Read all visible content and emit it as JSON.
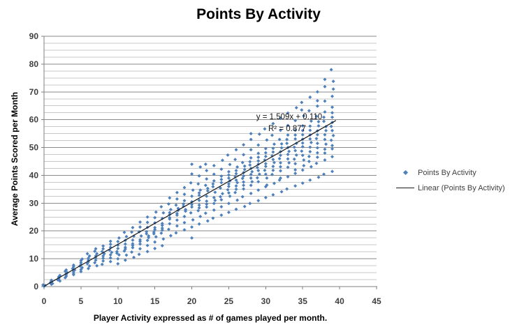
{
  "chart": {
    "title": "Points By Activity",
    "annotation": {
      "equation": "y = 1.509x + 0.110",
      "r_squared": "R² = 0.877"
    },
    "legend": {
      "items": [
        {
          "label": "Points By Activity",
          "marker": "diamond"
        },
        {
          "label": "Linear (Points By Activity)",
          "marker": "line"
        }
      ]
    }
  },
  "chart_data": {
    "type": "scatter",
    "title": "Points By Activity",
    "xlabel": "Player Activity expressed as # of games played per month.",
    "ylabel": "Average Points Scored per Month",
    "xlim": [
      0,
      45
    ],
    "ylim": [
      0,
      90
    ],
    "x_ticks": [
      0,
      5,
      10,
      15,
      20,
      25,
      30,
      35,
      40,
      45
    ],
    "y_ticks": [
      0,
      10,
      20,
      30,
      40,
      50,
      60,
      70,
      80,
      90
    ],
    "y_minor_step": 2.5,
    "grid": "horizontal-major-and-minor",
    "legend_position": "right",
    "colors": {
      "marker": "#4E80BC",
      "trendline": "#1A1A1A",
      "grid_major": "#8A8A8A",
      "grid_minor": "#C9C9C9",
      "axis": "#808080",
      "tick_text": "#3F3F3F"
    },
    "trendline": {
      "label": "Linear (Points By Activity)",
      "slope": 1.509,
      "intercept": 0.11,
      "r2": 0.877,
      "x_start": 0,
      "x_end": 39.5,
      "equation_text": "y = 1.509x + 0.110",
      "r2_text": "R² = 0.877"
    },
    "series": [
      {
        "name": "Points By Activity",
        "columns": [
          {
            "x": 0,
            "ys": [
              0.1,
              0.2,
              0.4,
              0.6
            ]
          },
          {
            "x": 1,
            "ys": [
              0.8,
              1.1,
              1.4,
              1.6,
              1.9,
              2.3
            ]
          },
          {
            "x": 2,
            "ys": [
              2.0,
              2.4,
              2.8,
              3.1,
              3.5,
              4.0
            ]
          },
          {
            "x": 3,
            "ys": [
              3.2,
              3.7,
              4.2,
              4.6,
              5.0,
              5.5,
              6.0
            ]
          },
          {
            "x": 4,
            "ys": [
              4.3,
              4.9,
              5.5,
              6.0,
              6.5,
              7.1,
              7.7
            ]
          },
          {
            "x": 5,
            "ys": [
              5.4,
              6.1,
              6.8,
              7.4,
              7.9,
              8.6,
              9.3,
              9.9
            ]
          },
          {
            "x": 6,
            "ys": [
              6.5,
              7.4,
              8.2,
              8.9,
              9.5,
              10.2,
              11.0,
              11.8
            ]
          },
          {
            "x": 7,
            "ys": [
              7.5,
              8.6,
              9.5,
              10.3,
              11.0,
              11.8,
              12.7,
              13.6
            ]
          },
          {
            "x": 8,
            "ys": [
              8.0,
              9.2,
              10.2,
              11.0,
              11.8,
              12.6,
              13.6,
              14.6
            ]
          },
          {
            "x": 9,
            "ys": [
              9.0,
              10.3,
              11.4,
              12.3,
              13.1,
              14.1,
              15.2,
              16.3
            ]
          },
          {
            "x": 10,
            "ys": [
              8.2,
              10.0,
              11.4,
              12.6,
              13.7,
              14.9,
              16.2,
              17.5,
              12.0
            ]
          },
          {
            "x": 11,
            "ys": [
              9.5,
              11.3,
              12.8,
              14.1,
              15.3,
              16.6,
              18.0,
              19.5,
              13.5
            ]
          },
          {
            "x": 12,
            "ys": [
              10.5,
              12.4,
              14.0,
              15.4,
              16.7,
              18.1,
              19.6,
              21.2,
              14.8
            ]
          },
          {
            "x": 13,
            "ys": [
              11.6,
              13.6,
              15.3,
              16.8,
              18.2,
              19.7,
              21.4,
              23.2,
              16.2
            ]
          },
          {
            "x": 14,
            "ys": [
              12.6,
              14.8,
              16.6,
              18.2,
              19.7,
              21.3,
              23.1,
              25.0,
              17.6,
              19.0
            ]
          },
          {
            "x": 15,
            "ys": [
              13.7,
              16.0,
              17.9,
              19.6,
              21.2,
              22.9,
              24.8,
              26.8,
              19.0,
              20.5
            ]
          },
          {
            "x": 16,
            "ys": [
              14.7,
              17.1,
              19.2,
              21.0,
              22.7,
              24.5,
              26.5,
              28.7,
              20.3,
              22.0
            ]
          },
          {
            "x": 17,
            "ys": [
              18.3,
              20.6,
              22.6,
              24.3,
              25.9,
              27.7,
              29.7,
              31.9,
              24.8,
              26.6
            ]
          },
          {
            "x": 18,
            "ys": [
              19.3,
              21.8,
              23.9,
              25.7,
              27.4,
              29.3,
              31.5,
              33.8,
              26.3,
              28.1
            ]
          },
          {
            "x": 19,
            "ys": [
              20.4,
              23.0,
              25.2,
              27.1,
              28.9,
              30.9,
              33.2,
              35.6,
              27.7,
              29.7
            ]
          },
          {
            "x": 20,
            "ys": [
              17.5,
              21.4,
              24.0,
              26.5,
              28.6,
              30.5,
              32.5,
              34.7,
              37.3,
              40.5,
              44.0,
              29.5
            ]
          },
          {
            "x": 21,
            "ys": [
              22.5,
              25.2,
              27.3,
              29.3,
              31.0,
              32.8,
              34.7,
              36.9,
              39.8,
              28.3,
              33.7,
              43.0
            ]
          },
          {
            "x": 22,
            "ys": [
              23.6,
              26.4,
              28.6,
              30.7,
              32.5,
              34.4,
              36.4,
              38.7,
              41.7,
              29.6,
              35.3,
              44.0
            ]
          },
          {
            "x": 23,
            "ys": [
              24.6,
              27.5,
              29.9,
              32.0,
              33.9,
              35.9,
              38.0,
              40.4,
              43.5,
              31.0,
              36.9
            ]
          },
          {
            "x": 24,
            "ys": [
              25.7,
              28.7,
              31.2,
              33.4,
              35.4,
              37.4,
              39.7,
              42.2,
              45.4,
              32.3,
              38.5
            ]
          },
          {
            "x": 25,
            "ys": [
              26.7,
              29.9,
              32.5,
              34.8,
              36.9,
              39.0,
              41.3,
              43.9,
              47.3,
              33.7,
              40.1,
              36.0,
              38.0
            ]
          },
          {
            "x": 26,
            "ys": [
              27.8,
              31.1,
              33.8,
              36.2,
              38.3,
              40.6,
              43.0,
              45.7,
              49.2,
              35.0,
              41.7,
              37.4,
              39.5
            ]
          },
          {
            "x": 27,
            "ys": [
              28.8,
              32.3,
              35.1,
              37.6,
              39.8,
              42.1,
              44.6,
              47.4,
              51.0,
              36.4,
              43.3,
              38.9,
              41.0
            ]
          },
          {
            "x": 28,
            "ys": [
              29.9,
              33.5,
              36.4,
              39.0,
              41.3,
              43.7,
              46.3,
              49.2,
              52.9,
              37.7,
              44.9,
              40.3,
              55.0,
              42.5
            ]
          },
          {
            "x": 29,
            "ys": [
              30.9,
              34.7,
              37.7,
              40.4,
              42.8,
              45.2,
              47.9,
              50.9,
              54.8,
              39.1,
              46.5,
              41.7,
              44.0
            ]
          },
          {
            "x": 30,
            "ys": [
              32.0,
              35.9,
              39.0,
              41.8,
              44.2,
              46.8,
              49.6,
              52.7,
              56.7,
              40.4,
              48.1,
              43.2,
              36.5,
              45.5
            ]
          },
          {
            "x": 31,
            "ys": [
              33.0,
              37.1,
              40.3,
              43.2,
              45.7,
              48.4,
              51.2,
              54.4,
              58.6,
              41.8,
              49.7,
              44.6,
              47.0
            ]
          },
          {
            "x": 32,
            "ys": [
              34.1,
              38.3,
              41.6,
              44.5,
              47.2,
              49.9,
              52.9,
              56.2,
              60.5,
              43.1,
              51.3,
              46.0,
              39.0,
              48.5
            ]
          },
          {
            "x": 33,
            "ys": [
              35.1,
              39.5,
              42.9,
              45.9,
              48.6,
              51.5,
              54.5,
              57.9,
              62.4,
              44.5,
              52.9,
              47.5,
              50.0
            ]
          },
          {
            "x": 34,
            "ys": [
              36.2,
              40.7,
              44.2,
              47.3,
              50.1,
              53.1,
              56.2,
              59.7,
              64.3,
              45.8,
              54.5,
              48.9,
              42.0,
              51.5
            ]
          },
          {
            "x": 35,
            "ys": [
              37.2,
              41.9,
              45.5,
              48.7,
              51.6,
              54.6,
              57.8,
              61.4,
              66.2,
              47.2,
              56.1,
              50.3,
              43.5,
              63.5,
              53.0
            ]
          },
          {
            "x": 36,
            "ys": [
              38.3,
              43.1,
              46.8,
              50.1,
              53.1,
              56.2,
              59.5,
              63.2,
              68.1,
              48.5,
              57.7,
              51.8,
              45.0,
              54.5
            ]
          },
          {
            "x": 37,
            "ys": [
              39.3,
              44.3,
              48.1,
              51.5,
              54.6,
              57.8,
              61.2,
              64.9,
              70.0,
              49.9,
              59.3,
              53.2,
              46.5,
              66.8,
              56.0
            ]
          },
          {
            "x": 38,
            "ys": [
              40.4,
              45.5,
              49.4,
              52.9,
              56.1,
              59.4,
              62.8,
              66.7,
              71.9,
              51.2,
              60.9,
              54.6,
              48.0,
              74.5,
              57.5
            ]
          },
          {
            "x": 39,
            "ys": [
              41.4,
              46.7,
              50.7,
              54.3,
              57.6,
              60.9,
              64.5,
              68.4,
              73.8,
              52.6,
              62.5,
              56.1,
              49.5,
              71.0,
              78.0,
              59.0
            ]
          }
        ]
      }
    ]
  }
}
